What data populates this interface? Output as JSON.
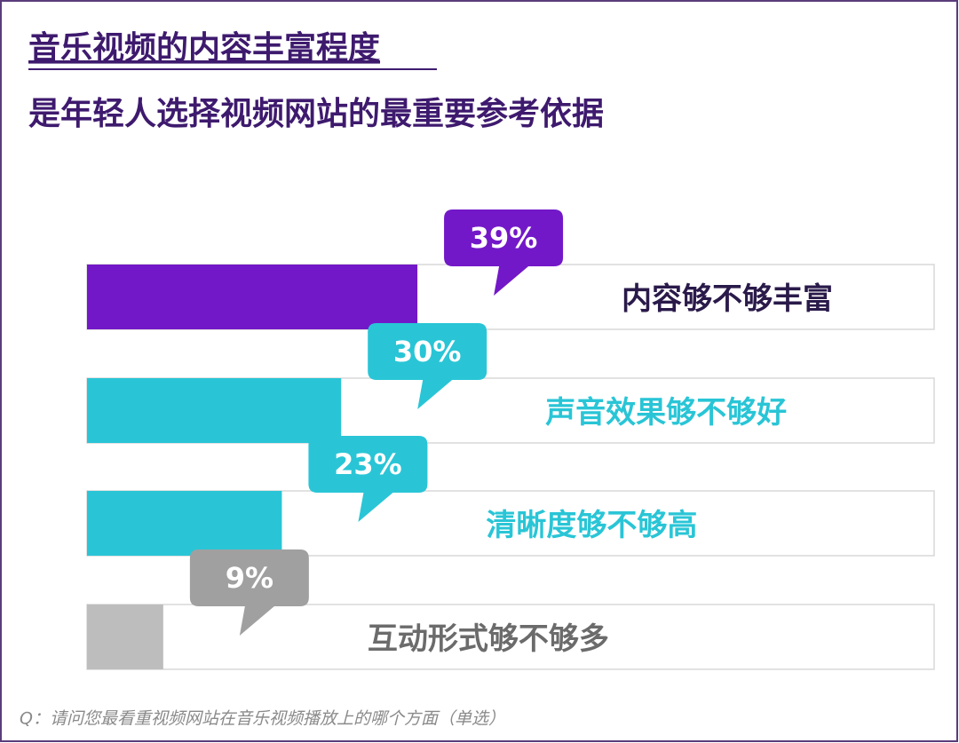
{
  "chart_data": {
    "type": "bar",
    "orientation": "horizontal",
    "title": "音乐视频的内容丰富程度",
    "subtitle": "是年轻人选择视频网站的最重要参考依据",
    "categories": [
      "内容够不够丰富",
      "声音效果够不够好",
      "清晰度够不够高",
      "互动形式够不够多"
    ],
    "values": [
      39,
      30,
      23,
      9
    ],
    "value_labels": [
      "39%",
      "30%",
      "23%",
      "9%"
    ],
    "colors": [
      "#7318c8",
      "#29c5d6",
      "#29c5d6",
      "#bdbdbd"
    ],
    "label_colors": [
      "#2a1a4a",
      "#29c5d6",
      "#29c5d6",
      "#6b6b6b"
    ],
    "callout_colors": [
      "#7318c8",
      "#29c5d6",
      "#29c5d6",
      "#a0a0a0"
    ],
    "xlim": [
      0,
      100
    ],
    "footnote": "Q：请问您最看重视频网站在音乐视频播放上的哪个方面（单选）"
  }
}
